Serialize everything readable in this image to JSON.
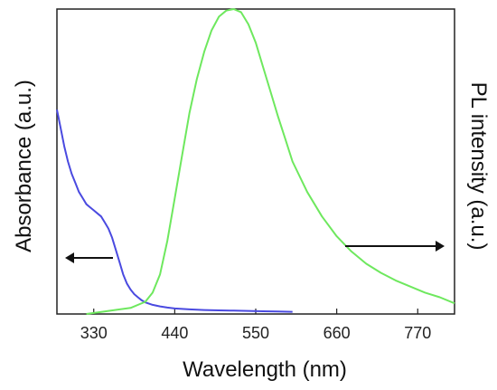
{
  "chart_data": {
    "type": "line",
    "xlabel": "Wavelength (nm)",
    "ylabel_left": "Absorbance (a.u.)",
    "ylabel_right": "PL intensity (a.u.)",
    "xlim": [
      280,
      820
    ],
    "xticks": [
      330,
      440,
      550,
      660,
      770
    ],
    "y_tick_labels": "none",
    "grid": false,
    "colors": {
      "absorbance": "#4a4ae0",
      "pl": "#6ee85e",
      "frame": "#222222"
    },
    "series": [
      {
        "axis": "left",
        "ylim": [
          0,
          1
        ],
        "x": [
          280,
          285,
          290,
          295,
          300,
          305,
          310,
          315,
          320,
          325,
          330,
          335,
          340,
          345,
          350,
          355,
          360,
          365,
          370,
          375,
          380,
          385,
          390,
          395,
          400,
          410,
          420,
          430,
          440,
          460,
          480,
          500,
          520,
          540,
          560,
          580,
          600
        ],
        "y": [
          0.67,
          0.61,
          0.55,
          0.5,
          0.46,
          0.43,
          0.4,
          0.38,
          0.36,
          0.35,
          0.34,
          0.33,
          0.32,
          0.3,
          0.28,
          0.25,
          0.21,
          0.17,
          0.13,
          0.1,
          0.08,
          0.065,
          0.055,
          0.045,
          0.038,
          0.03,
          0.025,
          0.021,
          0.018,
          0.015,
          0.013,
          0.012,
          0.011,
          0.01,
          0.009,
          0.008,
          0.007
        ]
      },
      {
        "axis": "right",
        "ylim": [
          0,
          1
        ],
        "x": [
          320,
          350,
          380,
          400,
          410,
          420,
          430,
          440,
          450,
          460,
          470,
          480,
          490,
          500,
          510,
          520,
          530,
          540,
          550,
          560,
          570,
          580,
          590,
          600,
          620,
          640,
          660,
          680,
          700,
          720,
          740,
          760,
          780,
          800,
          820
        ],
        "y": [
          0.0,
          0.01,
          0.02,
          0.04,
          0.07,
          0.13,
          0.24,
          0.38,
          0.52,
          0.66,
          0.77,
          0.86,
          0.93,
          0.975,
          0.995,
          1.0,
          0.99,
          0.95,
          0.89,
          0.81,
          0.73,
          0.65,
          0.575,
          0.5,
          0.4,
          0.32,
          0.255,
          0.205,
          0.165,
          0.135,
          0.11,
          0.09,
          0.07,
          0.055,
          0.035
        ]
      }
    ],
    "annotations": [
      {
        "type": "arrow",
        "points_to": "left axis",
        "near_x": 330
      },
      {
        "type": "arrow",
        "points_to": "right axis",
        "near_x": 720
      }
    ]
  }
}
